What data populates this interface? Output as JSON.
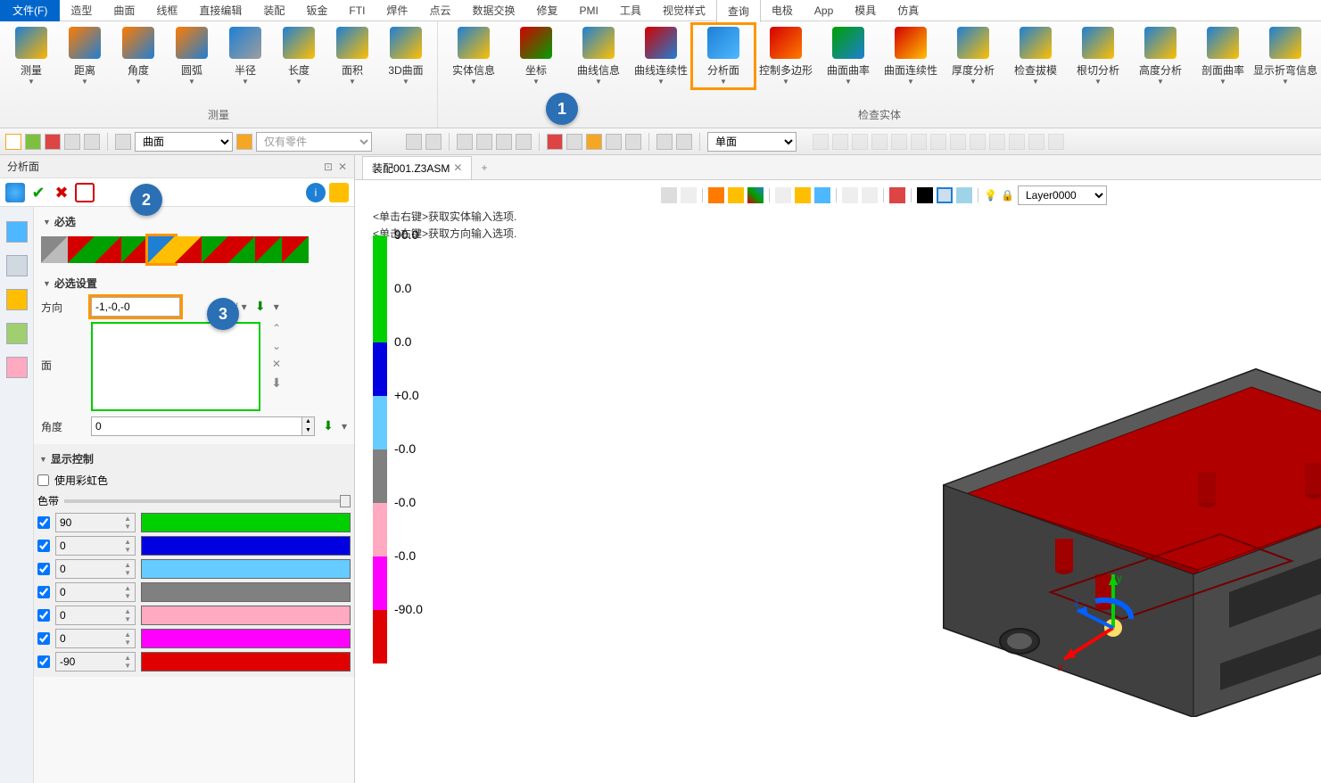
{
  "menus": {
    "file": "文件(F)",
    "items": [
      "造型",
      "曲面",
      "线框",
      "直接编辑",
      "装配",
      "钣金",
      "FTI",
      "焊件",
      "点云",
      "数据交换",
      "修复",
      "PMI",
      "工具",
      "视觉样式",
      "查询",
      "电极",
      "App",
      "模具",
      "仿真"
    ],
    "active": "查询"
  },
  "ribbon": {
    "group1": {
      "title": "测量",
      "btns": [
        {
          "lbl": "测量",
          "c1": "#1e7fd4",
          "c2": "#ffb400"
        },
        {
          "lbl": "距离",
          "c1": "#ff7b00",
          "c2": "#1e7fd4"
        },
        {
          "lbl": "角度",
          "c1": "#ff7b00",
          "c2": "#1e7fd4"
        },
        {
          "lbl": "圆弧",
          "c1": "#ff7b00",
          "c2": "#1e7fd4"
        },
        {
          "lbl": "半径",
          "c1": "#1e7fd4",
          "c2": "#9e9e9e"
        },
        {
          "lbl": "长度",
          "c1": "#1e7fd4",
          "c2": "#ffbf00"
        },
        {
          "lbl": "面积",
          "c1": "#1e7fd4",
          "c2": "#ffbf00"
        },
        {
          "lbl": "3D曲面",
          "c1": "#1e7fd4",
          "c2": "#ffbf00"
        }
      ]
    },
    "group2": {
      "title": "检查实体",
      "btns": [
        {
          "lbl": "实体信息",
          "c1": "#1e7fd4",
          "c2": "#ffbf00"
        },
        {
          "lbl": "坐标",
          "c1": "#d40000",
          "c2": "#00a000"
        },
        {
          "lbl": "曲线信息",
          "c1": "#1e7fd4",
          "c2": "#ffbf00"
        },
        {
          "lbl": "曲线连续性",
          "c1": "#d40000",
          "c2": "#1e7fd4"
        },
        {
          "lbl": "分析面",
          "c1": "#1e7fd4",
          "c2": "#4db8ff",
          "hl": true
        },
        {
          "lbl": "控制多边形",
          "c1": "#d40000",
          "c2": "#ff7b00"
        },
        {
          "lbl": "曲面曲率",
          "c1": "#00a000",
          "c2": "#1e7fd4"
        },
        {
          "lbl": "曲面连续性",
          "c1": "#d40000",
          "c2": "#ffbf00"
        },
        {
          "lbl": "厚度分析",
          "c1": "#1e7fd4",
          "c2": "#ffbf00"
        },
        {
          "lbl": "检查拔模",
          "c1": "#1e7fd4",
          "c2": "#ffbf00"
        },
        {
          "lbl": "根切分析",
          "c1": "#1e7fd4",
          "c2": "#ffbf00"
        },
        {
          "lbl": "高度分析",
          "c1": "#1e7fd4",
          "c2": "#ffbf00"
        },
        {
          "lbl": "剖面曲率",
          "c1": "#1e7fd4",
          "c2": "#ffbf00"
        },
        {
          "lbl": "显示折弯信息",
          "c1": "#1e7fd4",
          "c2": "#ffbf00"
        }
      ]
    }
  },
  "toolbar2": {
    "sel1": "曲面",
    "sel2": "仅有零件",
    "sel3": "单面"
  },
  "panel": {
    "title": "分析面",
    "sections": {
      "s1": "必选",
      "s2": "必选设置",
      "s3": "显示控制"
    },
    "thumbs": [
      {
        "c1": "#888",
        "c2": "#bbb"
      },
      {
        "c1": "#d40000",
        "c2": "#00a000"
      },
      {
        "c1": "#00a000",
        "c2": "#d40000"
      },
      {
        "c1": "#00a000",
        "c2": "#d40000"
      },
      {
        "c1": "#1e7fd4",
        "c2": "#ffbf00",
        "hl": true
      },
      {
        "c1": "#ffbf00",
        "c2": "#d40000"
      },
      {
        "c1": "#00a000",
        "c2": "#d40000"
      },
      {
        "c1": "#d40000",
        "c2": "#00a000"
      },
      {
        "c1": "#d40000",
        "c2": "#00a000"
      },
      {
        "c1": "#d40000",
        "c2": "#00a000"
      }
    ],
    "dir_label": "方向",
    "dir_value": "-1,-0,-0",
    "face_label": "面",
    "angle_label": "角度",
    "angle_value": "0",
    "rainbow": "使用彩虹色",
    "band": "色带",
    "colors": [
      {
        "v": "90",
        "c": "#00d000"
      },
      {
        "v": "0",
        "c": "#0000e0"
      },
      {
        "v": "0",
        "c": "#66ccff"
      },
      {
        "v": "0",
        "c": "#808080"
      },
      {
        "v": "0",
        "c": "#ffaac0"
      },
      {
        "v": "0",
        "c": "#ff00ff"
      },
      {
        "v": "-90",
        "c": "#e00000"
      }
    ]
  },
  "tab": {
    "name": "装配001.Z3ASM"
  },
  "hints": {
    "h1": "<单击右键>获取实体输入选项.",
    "h2": "<单击右键>获取方向输入选项."
  },
  "legend": {
    "segs": [
      {
        "c": "#00d000",
        "v": "90.0"
      },
      {
        "c": "#00d000",
        "v": "0.0"
      },
      {
        "c": "#0000e0",
        "v": "0.0"
      },
      {
        "c": "#66ccff",
        "v": "+0.0"
      },
      {
        "c": "#808080",
        "v": "-0.0"
      },
      {
        "c": "#ffaac0",
        "v": "-0.0"
      },
      {
        "c": "#ff00ff",
        "v": "-0.0"
      },
      {
        "c": "#e00000",
        "v": "-90.0"
      }
    ]
  },
  "layer": "Layer0000",
  "callouts": {
    "c1": "1",
    "c2": "2",
    "c3": "3"
  },
  "model": {
    "box_color": "#b00000",
    "box_dark": "#3a3a3a",
    "edge": "#1a1a1a",
    "axis_x": "#ff0000",
    "axis_y": "#00d000",
    "axis_z": "#0060ff",
    "x_lbl": "x",
    "y_lbl": "y",
    "z_lbl": "z"
  }
}
